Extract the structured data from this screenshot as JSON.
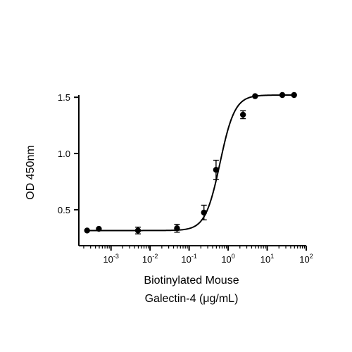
{
  "chart_data": {
    "type": "scatter",
    "x_scale": "log",
    "ylabel": "OD 450nm",
    "xlabel_lines": [
      "Biotinylated Mouse",
      "Galectin-4 (μg/mL)"
    ],
    "xlim": [
      0.00015,
      100
    ],
    "ylim": [
      0.18,
      1.52
    ],
    "x_ticks": [
      {
        "value": 0.001,
        "base": "10",
        "exp": "-3"
      },
      {
        "value": 0.01,
        "base": "10",
        "exp": "-2"
      },
      {
        "value": 0.1,
        "base": "10",
        "exp": "-1"
      },
      {
        "value": 1,
        "base": "10",
        "exp": "0"
      },
      {
        "value": 10,
        "base": "10",
        "exp": "1"
      },
      {
        "value": 100,
        "base": "10",
        "exp": "2"
      }
    ],
    "y_ticks": [
      {
        "value": 0.5,
        "label": "0.5"
      },
      {
        "value": 1.0,
        "label": "1.0"
      },
      {
        "value": 1.5,
        "label": "1.5"
      }
    ],
    "points": [
      {
        "x": 0.000244,
        "y": 0.315,
        "err": 0.0
      },
      {
        "x": 0.000488,
        "y": 0.33,
        "err": 0.0
      },
      {
        "x": 0.0049,
        "y": 0.315,
        "err": 0.03
      },
      {
        "x": 0.049,
        "y": 0.335,
        "err": 0.035
      },
      {
        "x": 0.24,
        "y": 0.475,
        "err": 0.065
      },
      {
        "x": 0.49,
        "y": 0.855,
        "err": 0.085
      },
      {
        "x": 2.4,
        "y": 1.345,
        "err": 0.035
      },
      {
        "x": 4.9,
        "y": 1.51,
        "err": 0.0
      },
      {
        "x": 24.4,
        "y": 1.52,
        "err": 0.0
      },
      {
        "x": 48.8,
        "y": 1.52,
        "err": 0.0
      }
    ],
    "fit": {
      "model": "4PL",
      "bottom": 0.315,
      "top": 1.52,
      "ec50": 0.62,
      "hill": 2.3
    },
    "grid": false,
    "legend": "none"
  }
}
